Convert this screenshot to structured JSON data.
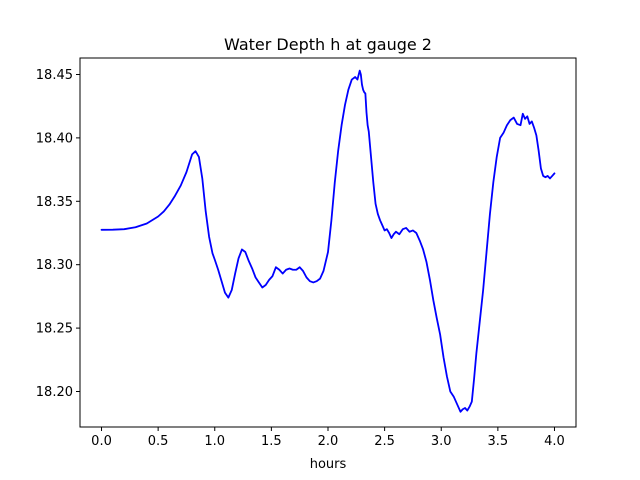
{
  "chart_data": {
    "type": "line",
    "title": "Water Depth h at gauge 2",
    "xlabel": "hours",
    "ylabel": "",
    "xlim": [
      -0.19,
      4.19
    ],
    "ylim": [
      18.172,
      18.463
    ],
    "xticks": [
      0.0,
      0.5,
      1.0,
      1.5,
      2.0,
      2.5,
      3.0,
      3.5,
      4.0
    ],
    "xtick_labels": [
      "0.0",
      "0.5",
      "1.0",
      "1.5",
      "2.0",
      "2.5",
      "3.0",
      "3.5",
      "4.0"
    ],
    "yticks": [
      18.2,
      18.25,
      18.3,
      18.35,
      18.4,
      18.45
    ],
    "ytick_labels": [
      "18.20",
      "18.25",
      "18.30",
      "18.35",
      "18.40",
      "18.45"
    ],
    "grid": false,
    "legend": "none",
    "series": [
      {
        "color": "#0000ff",
        "x": [
          0.0,
          0.1,
          0.2,
          0.3,
          0.4,
          0.5,
          0.55,
          0.6,
          0.65,
          0.7,
          0.75,
          0.8,
          0.83,
          0.86,
          0.89,
          0.92,
          0.95,
          0.98,
          1.0,
          1.03,
          1.06,
          1.09,
          1.12,
          1.15,
          1.18,
          1.21,
          1.24,
          1.27,
          1.3,
          1.33,
          1.36,
          1.39,
          1.42,
          1.45,
          1.48,
          1.51,
          1.54,
          1.57,
          1.6,
          1.63,
          1.66,
          1.69,
          1.72,
          1.75,
          1.78,
          1.81,
          1.84,
          1.87,
          1.9,
          1.93,
          1.96,
          2.0,
          2.03,
          2.06,
          2.09,
          2.12,
          2.15,
          2.18,
          2.21,
          2.24,
          2.26,
          2.28,
          2.29,
          2.3,
          2.31,
          2.32,
          2.33,
          2.34,
          2.35,
          2.36,
          2.38,
          2.4,
          2.42,
          2.44,
          2.46,
          2.48,
          2.5,
          2.52,
          2.54,
          2.56,
          2.58,
          2.6,
          2.63,
          2.66,
          2.69,
          2.72,
          2.75,
          2.78,
          2.81,
          2.84,
          2.87,
          2.9,
          2.93,
          2.96,
          2.99,
          3.02,
          3.05,
          3.08,
          3.11,
          3.14,
          3.17,
          3.19,
          3.21,
          3.23,
          3.25,
          3.27,
          3.29,
          3.31,
          3.34,
          3.37,
          3.4,
          3.43,
          3.46,
          3.49,
          3.52,
          3.55,
          3.58,
          3.61,
          3.64,
          3.67,
          3.7,
          3.72,
          3.74,
          3.76,
          3.78,
          3.8,
          3.82,
          3.84,
          3.86,
          3.88,
          3.9,
          3.92,
          3.94,
          3.96,
          3.98,
          4.0
        ],
        "y": [
          18.3275,
          18.3276,
          18.328,
          18.3295,
          18.3325,
          18.338,
          18.342,
          18.3475,
          18.3545,
          18.3625,
          18.373,
          18.387,
          18.3895,
          18.385,
          18.368,
          18.342,
          18.322,
          18.309,
          18.304,
          18.296,
          18.287,
          18.278,
          18.274,
          18.28,
          18.293,
          18.305,
          18.312,
          18.31,
          18.303,
          18.297,
          18.29,
          18.286,
          18.282,
          18.284,
          18.288,
          18.291,
          18.298,
          18.296,
          18.293,
          18.296,
          18.297,
          18.296,
          18.296,
          18.298,
          18.295,
          18.29,
          18.287,
          18.286,
          18.287,
          18.289,
          18.295,
          18.31,
          18.335,
          18.365,
          18.39,
          18.41,
          18.426,
          18.438,
          18.446,
          18.448,
          18.446,
          18.453,
          18.45,
          18.442,
          18.438,
          18.436,
          18.435,
          18.42,
          18.41,
          18.405,
          18.385,
          18.365,
          18.348,
          18.34,
          18.335,
          18.331,
          18.327,
          18.328,
          18.325,
          18.321,
          18.324,
          18.326,
          18.324,
          18.328,
          18.329,
          18.326,
          18.327,
          18.325,
          18.319,
          18.312,
          18.302,
          18.288,
          18.272,
          18.258,
          18.245,
          18.227,
          18.212,
          18.2,
          18.196,
          18.19,
          18.184,
          18.186,
          18.187,
          18.185,
          18.188,
          18.192,
          18.21,
          18.23,
          18.255,
          18.28,
          18.31,
          18.34,
          18.365,
          18.385,
          18.4,
          18.404,
          18.41,
          18.414,
          18.416,
          18.411,
          18.41,
          18.419,
          18.415,
          18.417,
          18.411,
          18.413,
          18.408,
          18.402,
          18.39,
          18.376,
          18.37,
          18.369,
          18.37,
          18.368,
          18.37,
          18.372
        ]
      }
    ]
  }
}
